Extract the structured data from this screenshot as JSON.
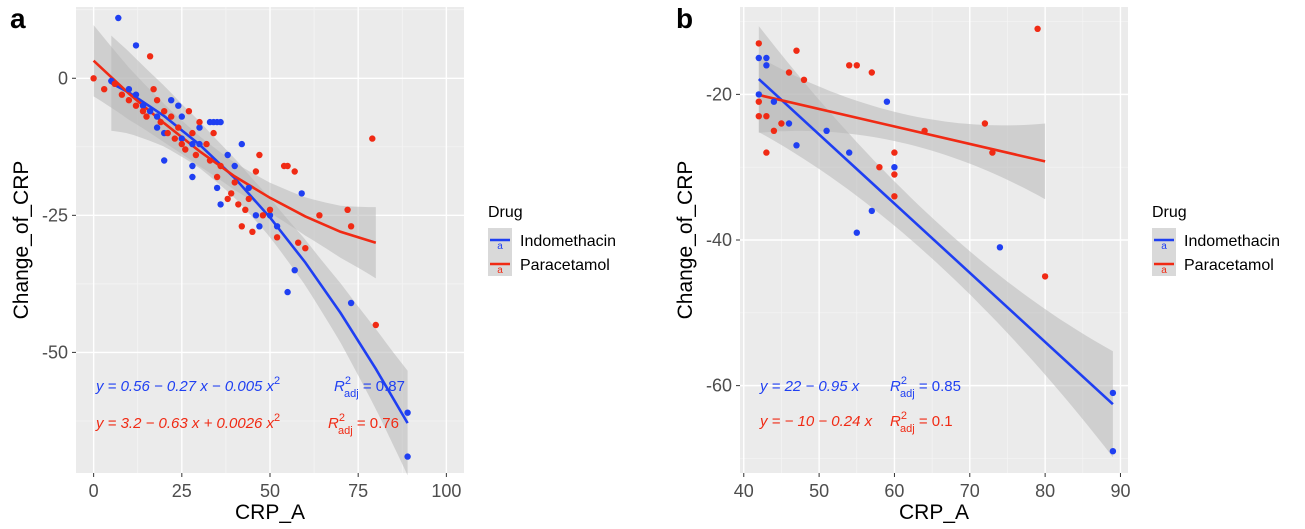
{
  "colors": {
    "Indomethacin": "#1f3ff2",
    "Paracetamol": "#f02a14",
    "panel": "#ebebeb",
    "band": "#b8b8b8"
  },
  "chart_data": [
    {
      "type": "scatter",
      "panel_label": "a",
      "xlabel": "CRP_A",
      "ylabel": "Change_of_CRP",
      "xlim": [
        -5,
        105
      ],
      "ylim": [
        -72,
        13
      ],
      "xticks": [
        0,
        25,
        50,
        75,
        100
      ],
      "yticks": [
        0,
        -25,
        -50
      ],
      "legend": {
        "title": "Drug",
        "entries": [
          "Indomethacin",
          "Paracetamol"
        ],
        "position": "right"
      },
      "series": [
        {
          "name": "Indomethacin",
          "points": [
            [
              7,
              11
            ],
            [
              12,
              6
            ],
            [
              5,
              -0.5
            ],
            [
              10,
              -2
            ],
            [
              12,
              -3
            ],
            [
              14,
              -5
            ],
            [
              16,
              -6
            ],
            [
              18,
              -7
            ],
            [
              18,
              -9
            ],
            [
              20,
              -10
            ],
            [
              20,
              -15
            ],
            [
              22,
              -4
            ],
            [
              24,
              -5
            ],
            [
              25,
              -7
            ],
            [
              25,
              -11
            ],
            [
              28,
              -12
            ],
            [
              28,
              -16
            ],
            [
              28,
              -18
            ],
            [
              30,
              -9
            ],
            [
              30,
              -12
            ],
            [
              33,
              -8
            ],
            [
              34,
              -8
            ],
            [
              35,
              -8
            ],
            [
              36,
              -8
            ],
            [
              35,
              -20
            ],
            [
              36,
              -23
            ],
            [
              38,
              -14
            ],
            [
              40,
              -16
            ],
            [
              42,
              -12
            ],
            [
              44,
              -20
            ],
            [
              46,
              -25
            ],
            [
              47,
              -27
            ],
            [
              50,
              -25
            ],
            [
              52,
              -27
            ],
            [
              55,
              -39
            ],
            [
              57,
              -35
            ],
            [
              59,
              -21
            ],
            [
              73,
              -41
            ],
            [
              89,
              -61
            ],
            [
              89,
              -69
            ]
          ],
          "fit": {
            "x": [
              5,
              10,
              20,
              30,
              40,
              50,
              60,
              70,
              80,
              89
            ],
            "y": [
              -0.9,
              -2.6,
              -6.9,
              -12.1,
              -18.2,
              -25.4,
              -33.6,
              -42.8,
              -53.0,
              -62.9
            ]
          },
          "equation": "y = 0.56 − 0.27 x − 0.005 x",
          "equation_sup": "2",
          "r2_label": "R",
          "r2_sup": "2",
          "r2_sub": "adj",
          "r2_value": " = 0.87"
        },
        {
          "name": "Paracetamol",
          "points": [
            [
              0,
              0
            ],
            [
              3,
              -2
            ],
            [
              6,
              -1
            ],
            [
              8,
              -3
            ],
            [
              10,
              -4
            ],
            [
              12,
              -5
            ],
            [
              14,
              -6
            ],
            [
              15,
              -7
            ],
            [
              16,
              4
            ],
            [
              17,
              -2
            ],
            [
              18,
              -4
            ],
            [
              19,
              -8
            ],
            [
              20,
              -6
            ],
            [
              21,
              -10
            ],
            [
              22,
              -7
            ],
            [
              23,
              -11
            ],
            [
              24,
              -9
            ],
            [
              25,
              -12
            ],
            [
              26,
              -13
            ],
            [
              27,
              -6
            ],
            [
              28,
              -10
            ],
            [
              29,
              -14
            ],
            [
              30,
              -8
            ],
            [
              32,
              -12
            ],
            [
              33,
              -15
            ],
            [
              34,
              -10
            ],
            [
              35,
              -18
            ],
            [
              36,
              -16
            ],
            [
              38,
              -22
            ],
            [
              39,
              -21
            ],
            [
              40,
              -19
            ],
            [
              41,
              -23
            ],
            [
              42,
              -27
            ],
            [
              43,
              -24
            ],
            [
              44,
              -22
            ],
            [
              45,
              -28
            ],
            [
              46,
              -17
            ],
            [
              47,
              -14
            ],
            [
              48,
              -25
            ],
            [
              50,
              -24
            ],
            [
              52,
              -29
            ],
            [
              54,
              -16
            ],
            [
              55,
              -16
            ],
            [
              57,
              -17
            ],
            [
              58,
              -30
            ],
            [
              60,
              -31
            ],
            [
              64,
              -25
            ],
            [
              72,
              -24
            ],
            [
              73,
              -27
            ],
            [
              79,
              -11
            ],
            [
              80,
              -45
            ]
          ],
          "fit": {
            "x": [
              0,
              10,
              20,
              30,
              40,
              50,
              60,
              70,
              80
            ],
            "y": [
              3.2,
              -2.8,
              -8.2,
              -13.3,
              -17.9,
              -21.8,
              -25.2,
              -28.0,
              -30.0
            ]
          },
          "equation": "y = 3.2 − 0.63 x + 0.0026 x",
          "equation_sup": "2",
          "r2_label": "R",
          "r2_sup": "2",
          "r2_sub": "adj",
          "r2_value": " = 0.76"
        }
      ]
    },
    {
      "type": "scatter",
      "panel_label": "b",
      "xlabel": "CRP_A",
      "ylabel": "Change_of_CRP",
      "xlim": [
        39.5,
        91
      ],
      "ylim": [
        -72,
        -8
      ],
      "xticks": [
        40,
        50,
        60,
        70,
        80,
        90
      ],
      "yticks": [
        -20,
        -40,
        -60
      ],
      "legend": {
        "title": "Drug",
        "entries": [
          "Indomethacin",
          "Paracetamol"
        ],
        "position": "right"
      },
      "series": [
        {
          "name": "Indomethacin",
          "points": [
            [
              42,
              -15
            ],
            [
              42,
              -20
            ],
            [
              43,
              -16
            ],
            [
              43,
              -15
            ],
            [
              44,
              -21
            ],
            [
              46,
              -24
            ],
            [
              47,
              -27
            ],
            [
              51,
              -25
            ],
            [
              54,
              -28
            ],
            [
              55,
              -39
            ],
            [
              57,
              -36
            ],
            [
              59,
              -21
            ],
            [
              60,
              -30
            ],
            [
              74,
              -41
            ],
            [
              89,
              -61
            ],
            [
              89,
              -69
            ]
          ],
          "fit": {
            "x": [
              42,
              89
            ],
            "y": [
              -17.9,
              -62.55
            ]
          },
          "equation": "y = 22 − 0.95 x",
          "r2_label": "R",
          "r2_sup": "2",
          "r2_sub": "adj",
          "r2_value": " = 0.85"
        },
        {
          "name": "Paracetamol",
          "points": [
            [
              42,
              -13
            ],
            [
              42,
              -21
            ],
            [
              42,
              -23
            ],
            [
              43,
              -23
            ],
            [
              43,
              -28
            ],
            [
              44,
              -25
            ],
            [
              45,
              -24
            ],
            [
              46,
              -17
            ],
            [
              47,
              -14
            ],
            [
              48,
              -18
            ],
            [
              54,
              -16
            ],
            [
              55,
              -16
            ],
            [
              57,
              -17
            ],
            [
              58,
              -30
            ],
            [
              60,
              -28
            ],
            [
              60,
              -31
            ],
            [
              60,
              -34
            ],
            [
              64,
              -25
            ],
            [
              72,
              -24
            ],
            [
              73,
              -28
            ],
            [
              79,
              -11
            ],
            [
              80,
              -45
            ]
          ],
          "fit": {
            "x": [
              42,
              80
            ],
            "y": [
              -20.08,
              -29.2
            ]
          },
          "equation": "y = − 10 − 0.24 x",
          "r2_label": "R",
          "r2_sup": "2",
          "r2_sub": "adj",
          "r2_value": " = 0.1"
        }
      ]
    }
  ]
}
